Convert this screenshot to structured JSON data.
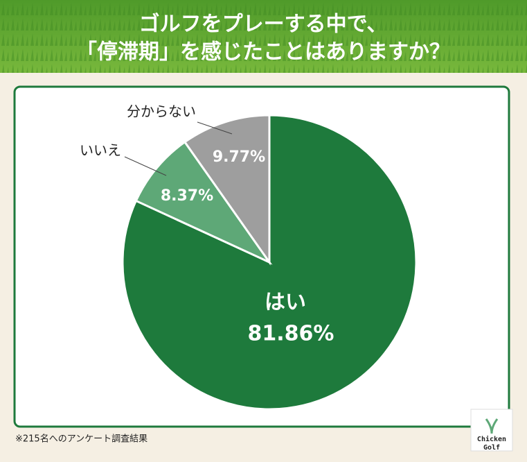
{
  "chart_data": {
    "type": "pie",
    "title": [
      "ゴルフをプレーする中で、",
      "「停滞期」を感じたことはありますか？"
    ],
    "categories": [
      "はい",
      "いいえ",
      "分からない"
    ],
    "values": [
      81.86,
      8.37,
      9.77
    ],
    "value_labels": [
      "81.86%",
      "8.37%",
      "9.77%"
    ],
    "colors": [
      "#1e7a3c",
      "#5ea877",
      "#9e9e9e"
    ]
  },
  "footnote": "※215名へのアンケート調査結果",
  "logo": [
    "Chicken",
    "Golf"
  ]
}
